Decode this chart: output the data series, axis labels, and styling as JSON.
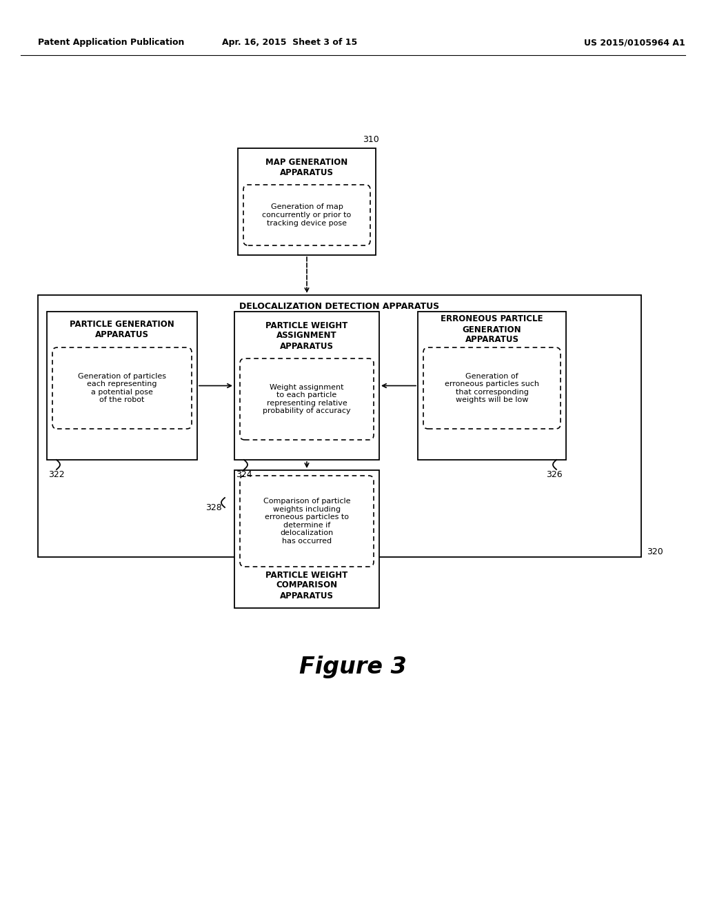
{
  "header_left": "Patent Application Publication",
  "header_mid": "Apr. 16, 2015  Sheet 3 of 15",
  "header_right": "US 2015/0105964 A1",
  "figure_label": "Figure 3",
  "bg_color": "#ffffff",
  "map_gen_label": "310",
  "map_gen_title": "MAP GENERATION\nAPPARATUS",
  "map_gen_desc": "Generation of map\nconcurrently or prior to\ntracking device pose",
  "deloc_label": "320",
  "deloc_title": "DELOCALIZATION DETECTION APPARATUS",
  "particle_gen_label": "322",
  "particle_gen_title": "PARTICLE GENERATION\nAPPARATUS",
  "particle_gen_desc": "Generation of particles\neach representing\na potential pose\nof the robot",
  "weight_assign_label": "324",
  "weight_assign_title": "PARTICLE WEIGHT\nASSIGNMENT\nAPPARATUS",
  "weight_assign_desc": "Weight assignment\nto each particle\nrepresenting relative\nprobability of accuracy",
  "erroneous_label": "326",
  "erroneous_title": "ERRONEOUS PARTICLE\nGENERATION\nAPPARATUS",
  "erroneous_desc": "Generation of\nerroneous particles such\nthat corresponding\nweights will be low",
  "comparison_label": "328",
  "comparison_title": "PARTICLE WEIGHT\nCOMPARISON\nAPPARATUS",
  "comparison_desc": "Comparison of particle\nweights including\nerroneous particles to\ndetermine if\ndelocalization\nhas occurred"
}
